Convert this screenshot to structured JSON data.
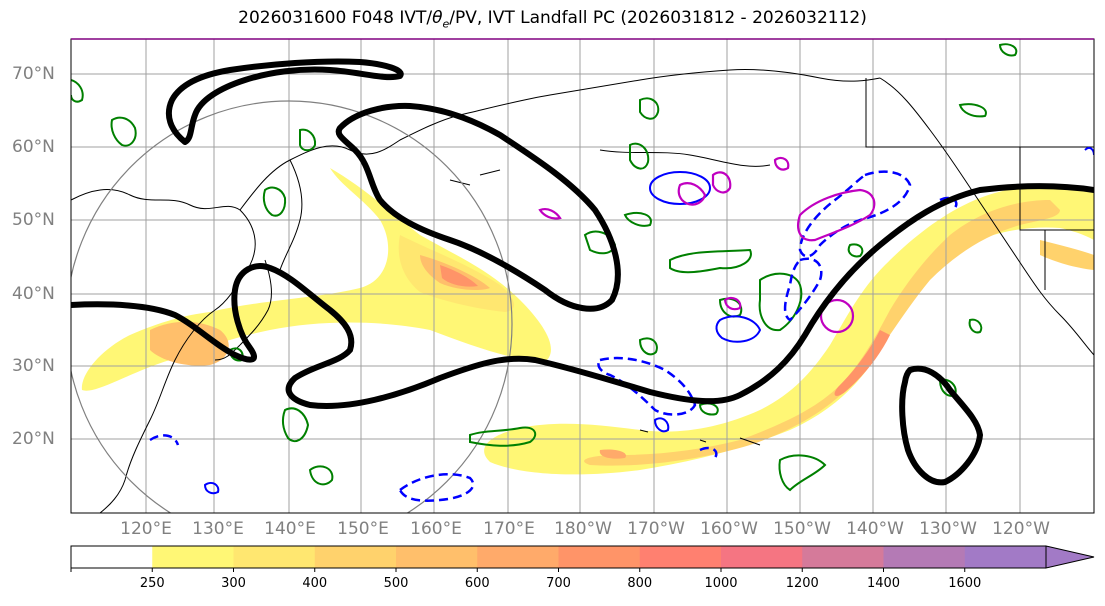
{
  "title": "2026031600 F048 IVT/θe/PV, IVT Landfall PC (2026031812 - 2026032112)",
  "title_parts": {
    "prefix": "2026031600 F048 IVT/",
    "theta": "θ",
    "theta_sub": "e",
    "suffix": "/PV, IVT Landfall PC (2026031812 - 2026032112)"
  },
  "map": {
    "lat_labels": [
      "70°N",
      "60°N",
      "50°N",
      "40°N",
      "30°N",
      "20°N"
    ],
    "lon_labels": [
      "120°E",
      "130°E",
      "140°E",
      "150°E",
      "160°E",
      "170°E",
      "180°W",
      "170°W",
      "160°W",
      "150°W",
      "140°W",
      "130°W",
      "120°W"
    ],
    "contour_colors": {
      "pc_contour": "#000000",
      "theta_e": "#008000",
      "pv_solid": "#0000ff",
      "pv_dashed": "#0000ff",
      "magenta": "#c000c0",
      "range_circle": "#808080"
    }
  },
  "colorbar": {
    "labels": [
      "250",
      "300",
      "400",
      "500",
      "600",
      "700",
      "800",
      "1000",
      "1200",
      "1400",
      "1600"
    ],
    "colors": [
      "#ffffff",
      "#fff775",
      "#ffe770",
      "#ffd26c",
      "#ffbf6b",
      "#ffaa6a",
      "#ff9468",
      "#ff8070",
      "#f57582",
      "#d57a9a",
      "#b47ab5",
      "#a27ac6"
    ]
  }
}
